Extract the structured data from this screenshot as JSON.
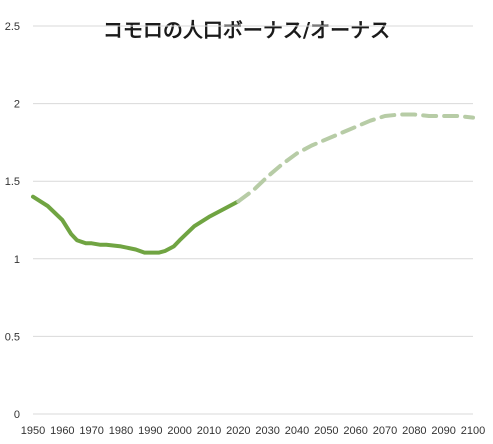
{
  "chart_data": {
    "type": "line",
    "title": "コモロの人口ボーナス/オーナス",
    "xlabel": "",
    "ylabel": "",
    "xlim": [
      1950,
      2100
    ],
    "ylim": [
      0,
      2.5
    ],
    "grid": true,
    "x_ticks": [
      "1950",
      "1960",
      "1970",
      "1980",
      "1990",
      "2000",
      "2010",
      "2020",
      "2030",
      "2040",
      "2050",
      "2060",
      "2070",
      "2080",
      "2090",
      "2100"
    ],
    "y_ticks": [
      "0",
      "0.5",
      "1",
      "1.5",
      "2",
      "2.5"
    ],
    "colors": {
      "actual": "#70a442",
      "projected": "#b7cca6",
      "grid": "#d9d9d9"
    },
    "series": [
      {
        "style": "solid",
        "x": [
          1950,
          1955,
          1960,
          1963,
          1965,
          1968,
          1970,
          1973,
          1975,
          1980,
          1985,
          1988,
          1990,
          1993,
          1995,
          1998,
          2000,
          2005,
          2010,
          2015,
          2020
        ],
        "values": [
          1.4,
          1.34,
          1.25,
          1.16,
          1.12,
          1.1,
          1.1,
          1.09,
          1.09,
          1.08,
          1.06,
          1.04,
          1.04,
          1.04,
          1.05,
          1.08,
          1.12,
          1.21,
          1.27,
          1.32,
          1.37
        ]
      },
      {
        "style": "dashed",
        "x": [
          2020,
          2025,
          2030,
          2035,
          2040,
          2045,
          2050,
          2055,
          2060,
          2065,
          2070,
          2075,
          2080,
          2085,
          2090,
          2095,
          2100
        ],
        "values": [
          1.37,
          1.44,
          1.53,
          1.61,
          1.68,
          1.73,
          1.77,
          1.81,
          1.85,
          1.89,
          1.92,
          1.93,
          1.93,
          1.92,
          1.92,
          1.92,
          1.91
        ]
      }
    ]
  }
}
